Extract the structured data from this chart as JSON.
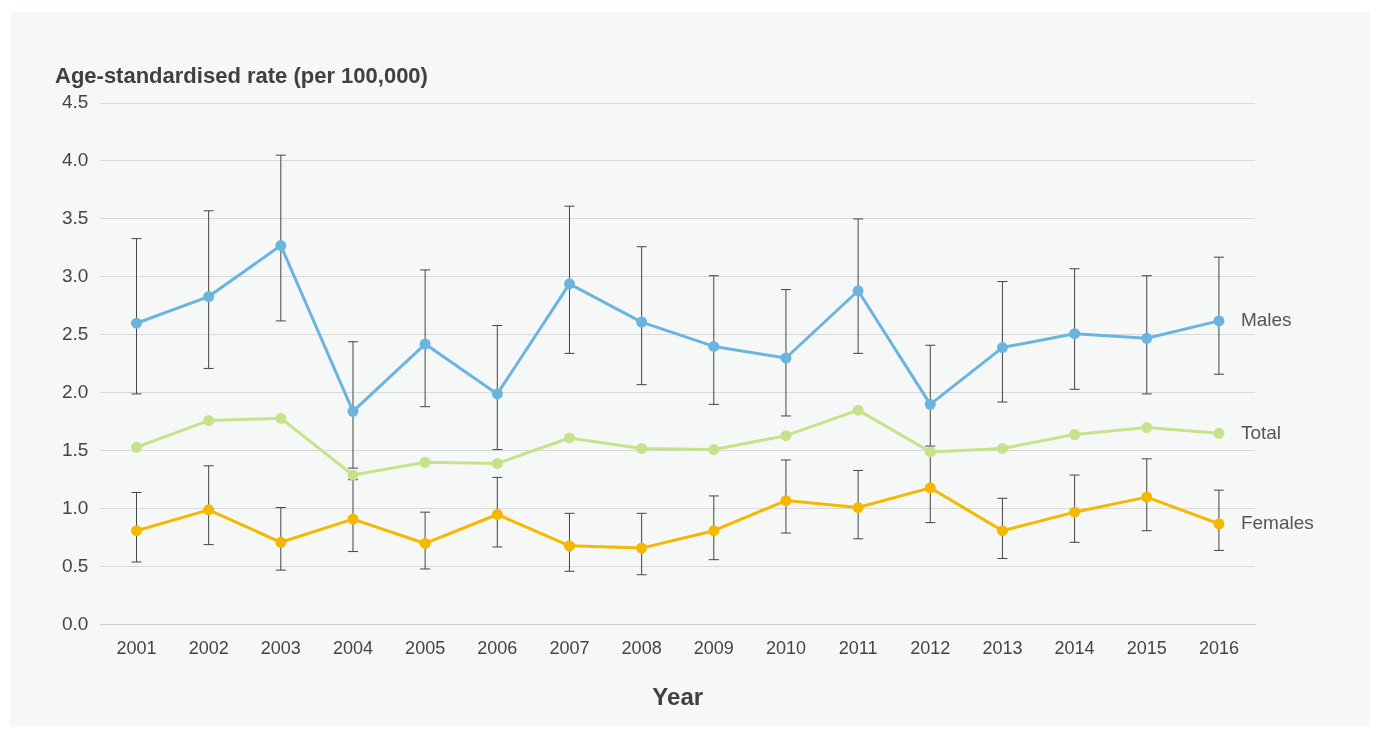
{
  "chart_data": {
    "type": "line",
    "ylabel": "Age-standardised rate (per 100,000)",
    "xlabel": "Year",
    "categories": [
      "2001",
      "2002",
      "2003",
      "2004",
      "2005",
      "2006",
      "2007",
      "2008",
      "2009",
      "2010",
      "2011",
      "2012",
      "2013",
      "2014",
      "2015",
      "2016"
    ],
    "series": [
      {
        "name": "Males",
        "color": "#6cb4e0",
        "values": [
          2.6,
          2.83,
          3.27,
          1.84,
          2.42,
          1.99,
          2.94,
          2.61,
          2.4,
          2.3,
          2.88,
          1.9,
          2.39,
          2.51,
          2.47,
          2.62
        ],
        "errors": [
          [
            1.99,
            3.33
          ],
          [
            2.21,
            3.57
          ],
          [
            2.62,
            4.05
          ],
          [
            1.35,
            2.44
          ],
          [
            1.88,
            3.06
          ],
          [
            1.51,
            2.58
          ],
          [
            2.34,
            3.61
          ],
          [
            2.07,
            3.26
          ],
          [
            1.9,
            3.01
          ],
          [
            1.8,
            2.89
          ],
          [
            2.34,
            3.5
          ],
          [
            1.54,
            2.41
          ],
          [
            1.92,
            2.96
          ],
          [
            2.03,
            3.07
          ],
          [
            1.99,
            3.01
          ],
          [
            2.16,
            3.17
          ]
        ]
      },
      {
        "name": "Total",
        "color": "#c5e38a",
        "values": [
          1.53,
          1.76,
          1.78,
          1.29,
          1.4,
          1.39,
          1.61,
          1.52,
          1.51,
          1.63,
          1.85,
          1.49,
          1.52,
          1.64,
          1.7,
          1.65
        ]
      },
      {
        "name": "Females",
        "color": "#f5b800",
        "values": [
          0.81,
          0.99,
          0.71,
          0.91,
          0.7,
          0.95,
          0.68,
          0.66,
          0.81,
          1.07,
          1.01,
          1.18,
          0.81,
          0.97,
          1.1,
          0.87
        ],
        "errors": [
          [
            0.54,
            1.14
          ],
          [
            0.69,
            1.37
          ],
          [
            0.47,
            1.01
          ],
          [
            0.63,
            1.25
          ],
          [
            0.48,
            0.97
          ],
          [
            0.67,
            1.27
          ],
          [
            0.46,
            0.96
          ],
          [
            0.43,
            0.96
          ],
          [
            0.56,
            1.11
          ],
          [
            0.79,
            1.42
          ],
          [
            0.74,
            1.33
          ],
          [
            0.88,
            1.5
          ],
          [
            0.57,
            1.09
          ],
          [
            0.71,
            1.29
          ],
          [
            0.81,
            1.43
          ],
          [
            0.64,
            1.16
          ]
        ]
      }
    ],
    "ylim": [
      0,
      4.5
    ],
    "yticks": [
      {
        "value": 0,
        "label": "0.0"
      },
      {
        "value": 0.5,
        "label": "0.5"
      },
      {
        "value": 1,
        "label": "1.0"
      },
      {
        "value": 1.5,
        "label": "1.5"
      },
      {
        "value": 2,
        "label": "2.0"
      },
      {
        "value": 2.5,
        "label": "2.5"
      },
      {
        "value": 3,
        "label": "3.0"
      },
      {
        "value": 3.5,
        "label": "3.5"
      },
      {
        "value": 4,
        "label": "4.0"
      },
      {
        "value": 4.5,
        "label": "4.5"
      }
    ],
    "grid": "y",
    "legend": false,
    "marker": "circle",
    "line_style": "solid"
  }
}
